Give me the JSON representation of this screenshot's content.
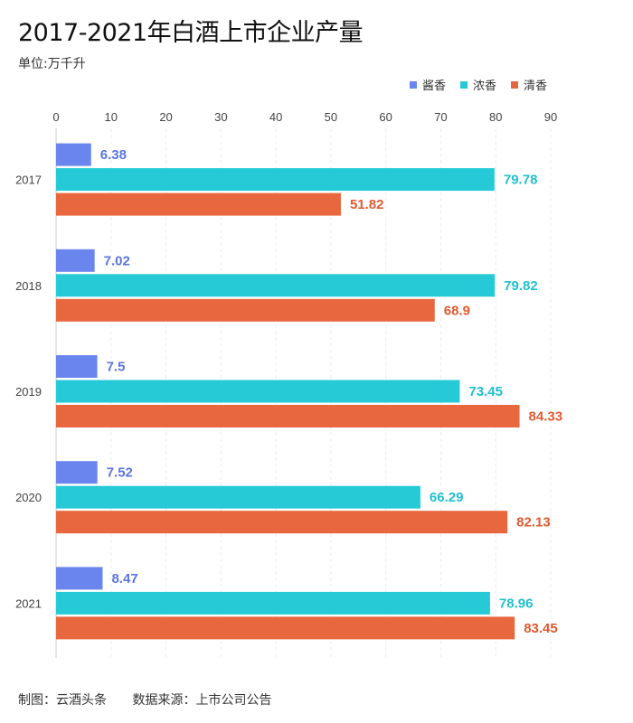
{
  "chart_data": {
    "type": "bar",
    "orientation": "horizontal",
    "title": "2017-2021年白酒上市企业产量",
    "subtitle": "单位:万千升",
    "categories": [
      "2017",
      "2018",
      "2019",
      "2020",
      "2021"
    ],
    "series": [
      {
        "name": "酱香",
        "color": "#6b85ee",
        "values": [
          6.38,
          7.02,
          7.5,
          7.52,
          8.47
        ]
      },
      {
        "name": "浓香",
        "color": "#26cad7",
        "values": [
          79.78,
          79.82,
          73.45,
          66.29,
          78.96
        ]
      },
      {
        "name": "清香",
        "color": "#e8673e",
        "values": [
          51.82,
          68.9,
          84.33,
          82.13,
          83.45
        ]
      }
    ],
    "data_labels": [
      [
        "6.38",
        "7.02",
        "7.5",
        "7.52",
        "8.47"
      ],
      [
        "79.78",
        "79.82",
        "73.45",
        "66.29",
        "78.96"
      ],
      [
        "51.82",
        "68.9",
        "84.33",
        "82.13",
        "83.45"
      ]
    ],
    "label_colors": [
      "#5b74e0",
      "#1fc0cf",
      "#e05a30"
    ],
    "xlim": [
      0,
      90
    ],
    "xticks": [
      "0",
      "10",
      "20",
      "30",
      "40",
      "50",
      "60",
      "70",
      "80",
      "90"
    ],
    "x_axis_position": "top",
    "grid": true,
    "legend_position": "top-right"
  },
  "footer": {
    "credit": "制图：云酒头条",
    "source": "数据来源：上市公司公告"
  }
}
